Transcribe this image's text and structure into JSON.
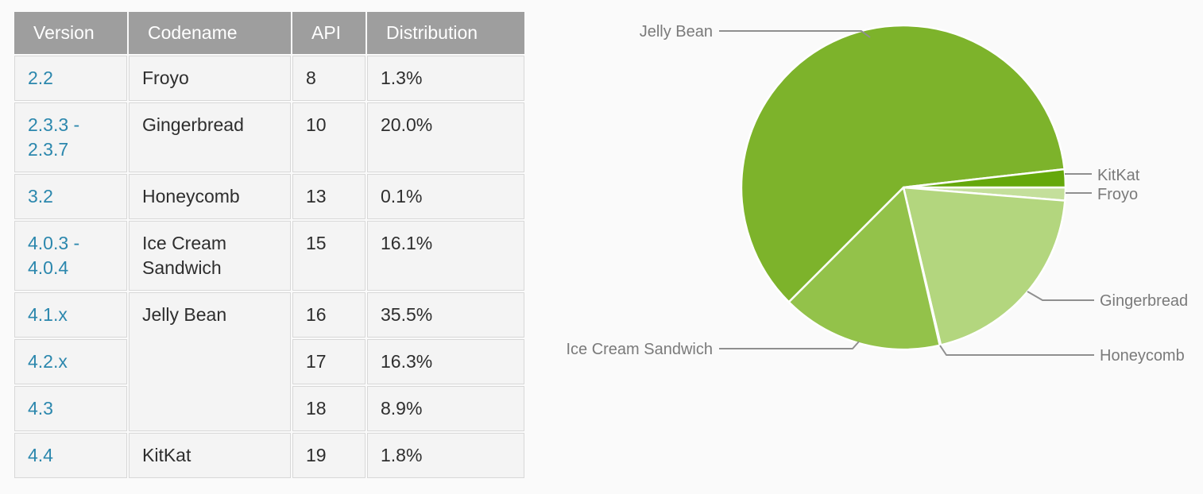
{
  "table": {
    "headers": [
      "Version",
      "Codename",
      "API",
      "Distribution"
    ],
    "rows": [
      {
        "version": "2.2",
        "codename": "Froyo",
        "api": "8",
        "distribution": "1.3%"
      },
      {
        "version": "2.3.3 - 2.3.7",
        "codename": "Gingerbread",
        "api": "10",
        "distribution": "20.0%"
      },
      {
        "version": "3.2",
        "codename": "Honeycomb",
        "api": "13",
        "distribution": "0.1%"
      },
      {
        "version": "4.0.3 - 4.0.4",
        "codename": "Ice Cream Sandwich",
        "api": "15",
        "distribution": "16.1%"
      },
      {
        "version": "4.1.x",
        "codename": "Jelly Bean",
        "api": "16",
        "distribution": "35.5%"
      },
      {
        "version": "4.2.x",
        "api": "17",
        "distribution": "16.3%"
      },
      {
        "version": "4.3",
        "api": "18",
        "distribution": "8.9%"
      },
      {
        "version": "4.4",
        "codename": "KitKat",
        "api": "19",
        "distribution": "1.8%"
      }
    ],
    "header_bg": "#9e9e9e",
    "link_color": "#2b87ad"
  },
  "chart_data": {
    "type": "pie",
    "unit": "%",
    "start_angle_deg": 0,
    "direction": "clockwise",
    "slices": [
      {
        "label": "Froyo",
        "value": 1.3,
        "color": "#c4df9b"
      },
      {
        "label": "Gingerbread",
        "value": 20.0,
        "color": "#b3d67e"
      },
      {
        "label": "Honeycomb",
        "value": 0.1,
        "color": "#a3cc62"
      },
      {
        "label": "Ice Cream Sandwich",
        "value": 16.1,
        "color": "#93c24a"
      },
      {
        "label": "Jelly Bean",
        "value": 60.7,
        "color": "#7db32b"
      },
      {
        "label": "KitKat",
        "value": 1.8,
        "color": "#65a80b"
      }
    ],
    "label_color": "#7a7a7a",
    "leader_line_color": "#8f8f8f",
    "legend_position": "outside-callouts",
    "grid": false
  }
}
